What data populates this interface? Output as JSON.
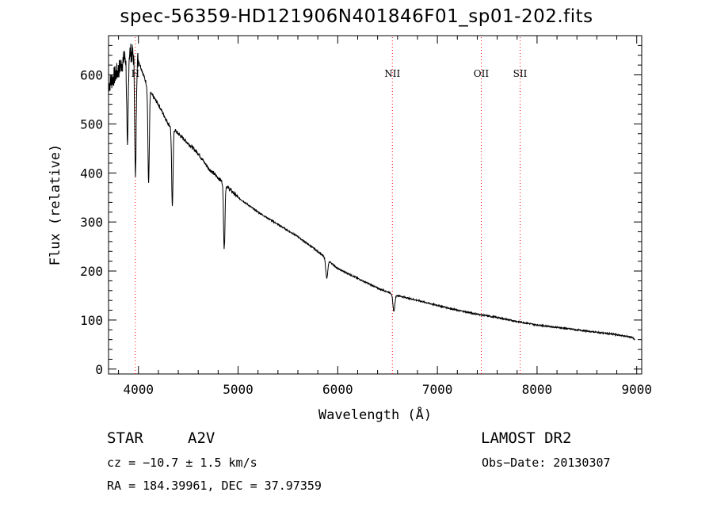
{
  "chart_data": {
    "type": "line",
    "title": "spec-56359-HD121906N401846F01_sp01-202.fits",
    "xlabel": "Wavelength (Å)",
    "ylabel": "Flux (relative)",
    "xlim": [
      3700,
      9050
    ],
    "ylim": [
      -10,
      680
    ],
    "xticks": [
      4000,
      5000,
      6000,
      7000,
      8000,
      9000
    ],
    "yticks": [
      0,
      100,
      200,
      300,
      400,
      500,
      600
    ],
    "line_color": "#000000",
    "marker_color": "#ff0000",
    "continuum": {
      "x": [
        3700,
        3800,
        3900,
        4000,
        4100,
        4200,
        4300,
        4400,
        4500,
        4600,
        4700,
        4800,
        4900,
        5000,
        5200,
        5400,
        5600,
        5800,
        6000,
        6200,
        6400,
        6600,
        6800,
        7000,
        7200,
        7400,
        7600,
        7800,
        8000,
        8200,
        8400,
        8600,
        8800,
        8950,
        8980
      ],
      "y": [
        580,
        610,
        650,
        630,
        570,
        540,
        500,
        480,
        460,
        440,
        410,
        390,
        370,
        350,
        320,
        295,
        270,
        240,
        205,
        185,
        165,
        150,
        140,
        130,
        120,
        112,
        105,
        97,
        90,
        85,
        80,
        75,
        70,
        65,
        60
      ]
    },
    "absorption_lines": [
      {
        "x": 3890,
        "y": 440
      },
      {
        "x": 3970,
        "y": 385
      },
      {
        "x": 4102,
        "y": 380
      },
      {
        "x": 4340,
        "y": 330
      },
      {
        "x": 4861,
        "y": 245
      },
      {
        "x": 5890,
        "y": 185
      },
      {
        "x": 6563,
        "y": 118
      }
    ],
    "line_markers": [
      {
        "x": 3969,
        "label": "H"
      },
      {
        "x": 6548,
        "label": "NII"
      },
      {
        "x": 7440,
        "label": "OII"
      },
      {
        "x": 7830,
        "label": "SII"
      }
    ]
  },
  "info": {
    "class": "STAR",
    "subclass": "A2V",
    "survey": "LAMOST DR2",
    "cz": "cz = −10.7 ± 1.5 km/s",
    "obs_date": "Obs−Date: 20130307",
    "radec": "RA = 184.39961, DEC =  37.97359"
  }
}
